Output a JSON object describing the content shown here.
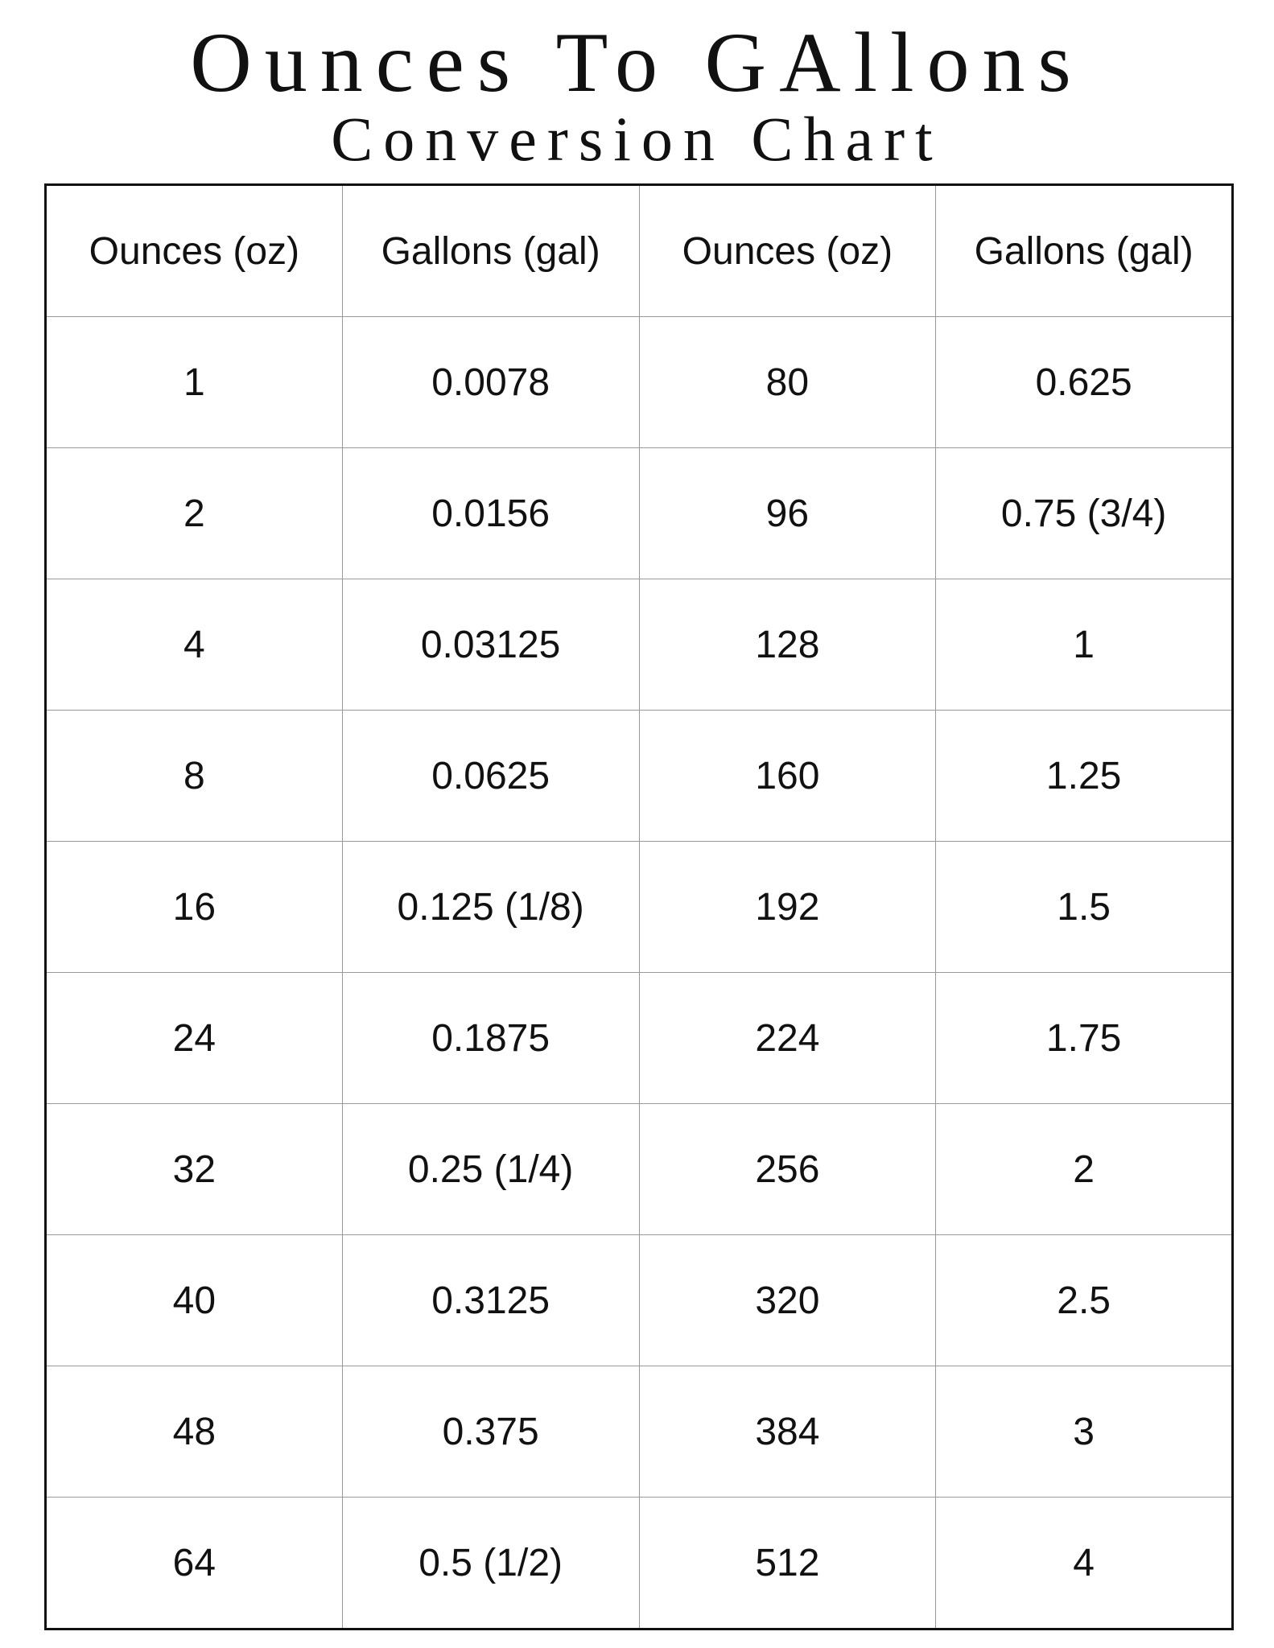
{
  "header": {
    "title": "Ounces To GAllons",
    "subtitle": "Conversion Chart"
  },
  "table": {
    "columns": [
      "Ounces (oz)",
      "Gallons (gal)",
      "Ounces (oz)",
      "Gallons (gal)"
    ],
    "rows": [
      [
        "1",
        "0.0078",
        "80",
        "0.625"
      ],
      [
        "2",
        "0.0156",
        "96",
        "0.75 (3/4)"
      ],
      [
        "4",
        "0.03125",
        "128",
        "1"
      ],
      [
        "8",
        "0.0625",
        "160",
        "1.25"
      ],
      [
        "16",
        "0.125 (1/8)",
        "192",
        "1.5"
      ],
      [
        "24",
        "0.1875",
        "224",
        "1.75"
      ],
      [
        "32",
        "0.25 (1/4)",
        "256",
        "2"
      ],
      [
        "40",
        "0.3125",
        "320",
        "2.5"
      ],
      [
        "48",
        "0.375",
        "384",
        "3"
      ],
      [
        "64",
        "0.5 (1/2)",
        "512",
        "4"
      ]
    ]
  }
}
